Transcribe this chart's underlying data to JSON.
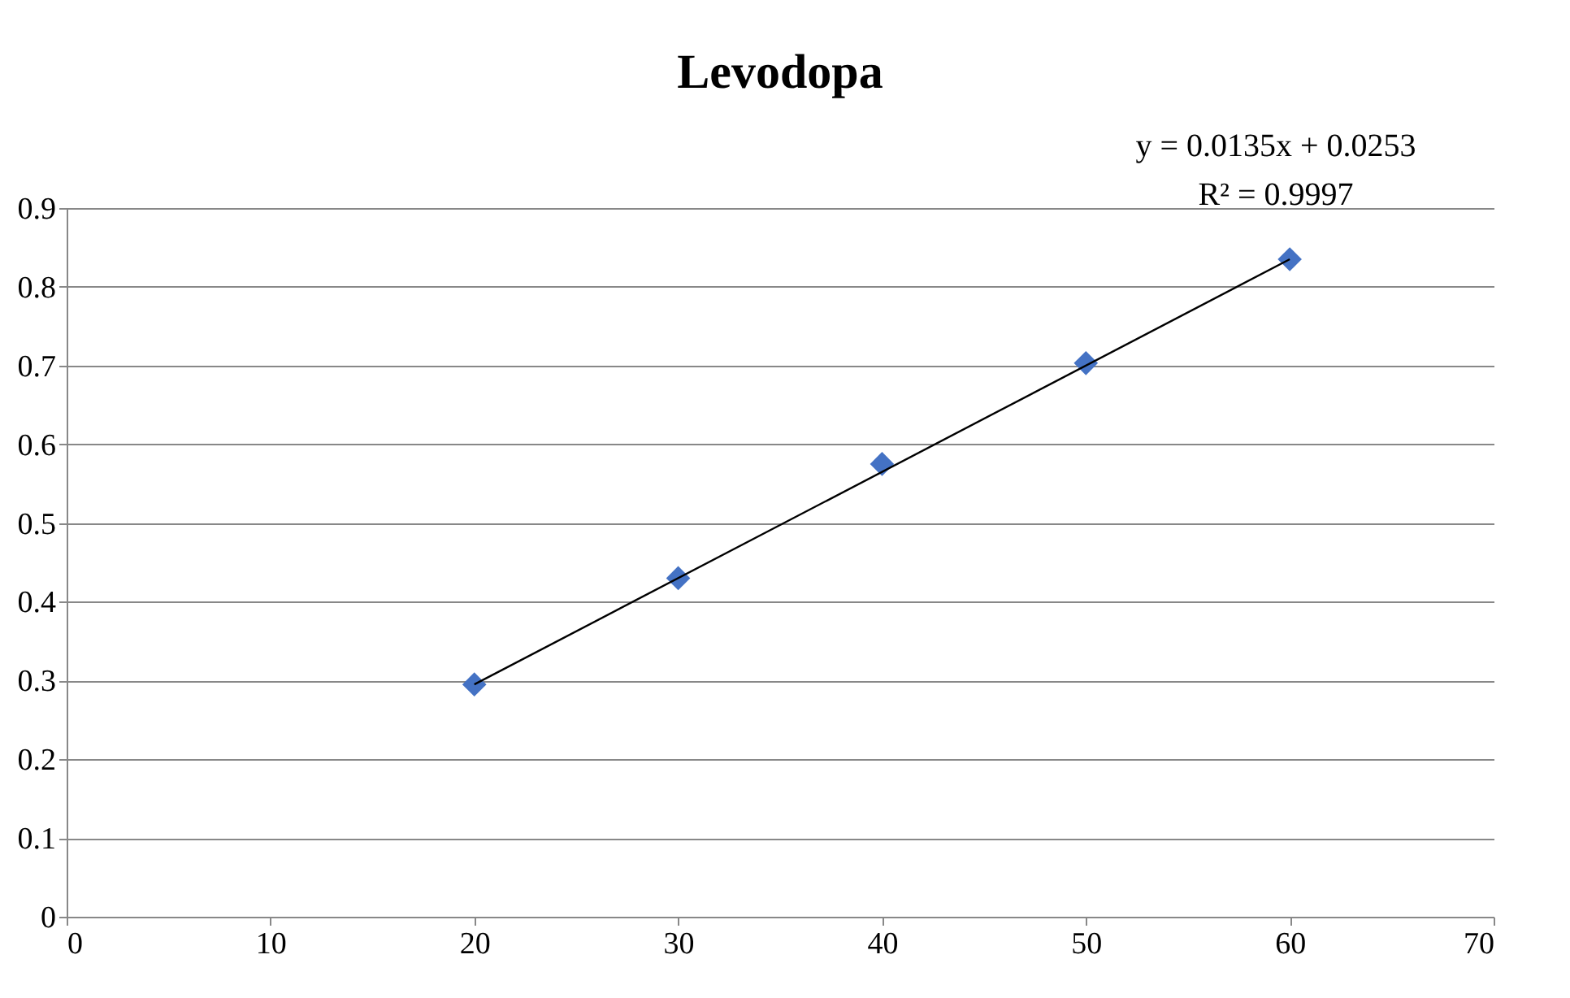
{
  "chart_data": {
    "type": "scatter",
    "title": "Levodopa",
    "annotations": [
      "y = 0.0135x + 0.0253",
      "R² = 0.9997"
    ],
    "x": [
      20,
      30,
      40,
      50,
      60
    ],
    "series": [
      {
        "color": "#4472c4",
        "marker": "diamond",
        "values": [
          0.295,
          0.43,
          0.575,
          0.703,
          0.835
        ]
      },
      {
        "type": "line",
        "color": "#000000",
        "x": [
          20,
          60
        ],
        "values": [
          0.295,
          0.835
        ],
        "line_style": "solid"
      }
    ],
    "xlim": [
      0,
      70
    ],
    "xticks": [
      0,
      10,
      20,
      30,
      40,
      50,
      60,
      70
    ],
    "ylim": [
      0,
      0.9
    ],
    "yticks": [
      0,
      0.1,
      0.2,
      0.3,
      0.4,
      0.5,
      0.6,
      0.7,
      0.8,
      0.9
    ],
    "grid": "y"
  }
}
